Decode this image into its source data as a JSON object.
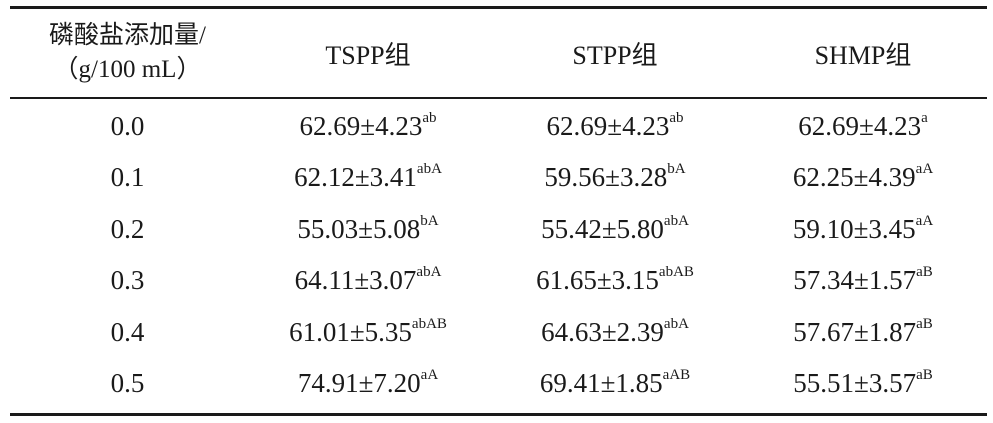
{
  "table": {
    "headers": {
      "col0_line1": "磷酸盐添加量/",
      "col0_line2": "（g/100 mL）",
      "col1": "TSPP组",
      "col2": "STPP组",
      "col3": "SHMP组"
    },
    "rows": [
      {
        "level": "0.0",
        "tspp": {
          "value": "62.69±4.23",
          "sup": "ab"
        },
        "stpp": {
          "value": "62.69±4.23",
          "sup": "ab"
        },
        "shmp": {
          "value": "62.69±4.23",
          "sup": "a"
        }
      },
      {
        "level": "0.1",
        "tspp": {
          "value": "62.12±3.41",
          "sup": "abA"
        },
        "stpp": {
          "value": "59.56±3.28",
          "sup": "bA"
        },
        "shmp": {
          "value": "62.25±4.39",
          "sup": "aA"
        }
      },
      {
        "level": "0.2",
        "tspp": {
          "value": "55.03±5.08",
          "sup": "bA"
        },
        "stpp": {
          "value": "55.42±5.80",
          "sup": "abA"
        },
        "shmp": {
          "value": "59.10±3.45",
          "sup": "aA"
        }
      },
      {
        "level": "0.3",
        "tspp": {
          "value": "64.11±3.07",
          "sup": "abA"
        },
        "stpp": {
          "value": "61.65±3.15",
          "sup": "abAB"
        },
        "shmp": {
          "value": "57.34±1.57",
          "sup": "aB"
        }
      },
      {
        "level": "0.4",
        "tspp": {
          "value": "61.01±5.35",
          "sup": "abAB"
        },
        "stpp": {
          "value": "64.63±2.39",
          "sup": "abA"
        },
        "shmp": {
          "value": "57.67±1.87",
          "sup": "aB"
        }
      },
      {
        "level": "0.5",
        "tspp": {
          "value": "74.91±7.20",
          "sup": "aA"
        },
        "stpp": {
          "value": "69.41±1.85",
          "sup": "aAB"
        },
        "shmp": {
          "value": "55.51±3.57",
          "sup": "aB"
        }
      }
    ]
  }
}
